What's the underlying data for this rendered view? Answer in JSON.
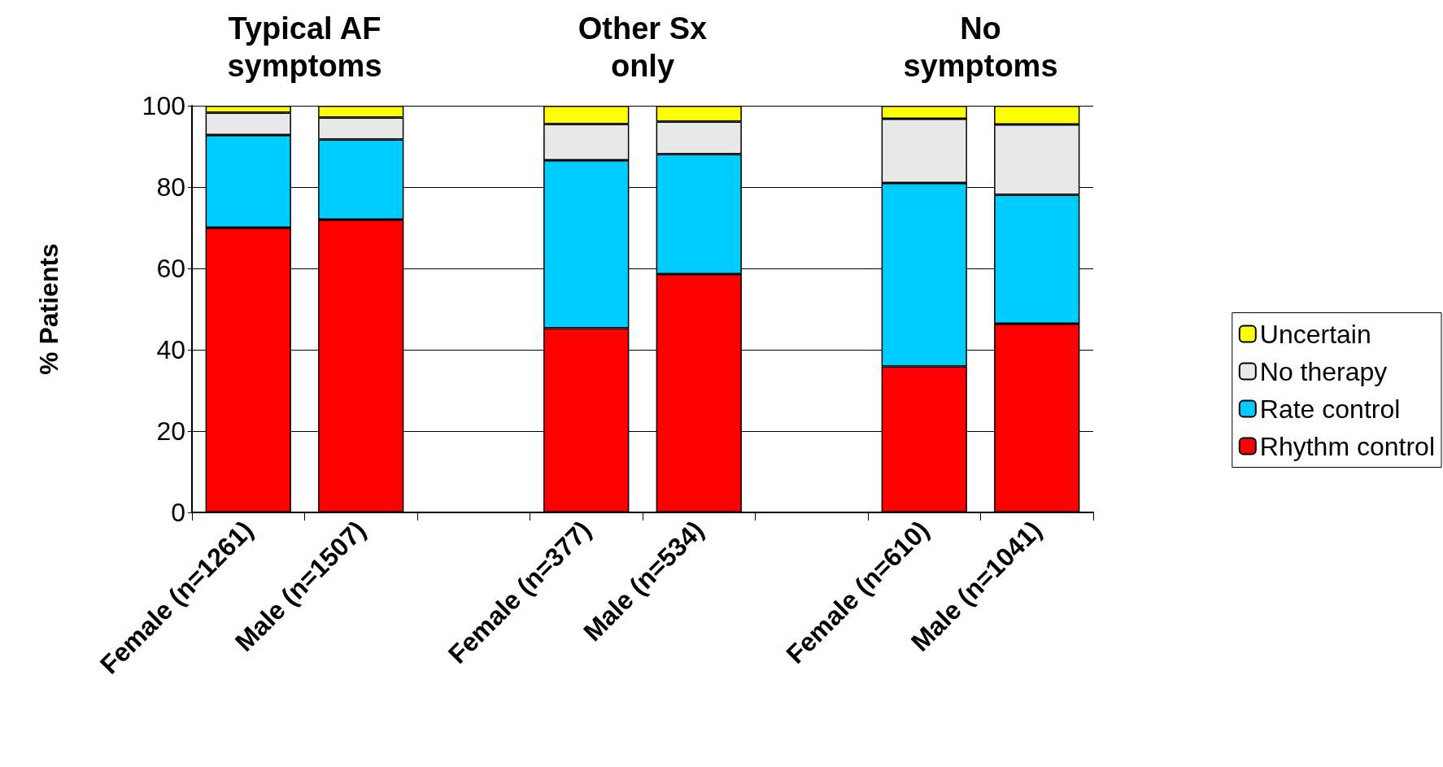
{
  "chart_data": {
    "type": "bar",
    "stacked": true,
    "ylabel": "% Patients",
    "annotations": [
      "Typical AF\nsymptoms",
      "Other Sx\nonly",
      "No\nsymptoms"
    ],
    "categories": [
      "Female (n=1261)",
      "Male (n=1507)",
      null,
      "Female (n=377)",
      "Male (n=534)",
      null,
      "Female (n=610)",
      "Male (n=1041)"
    ],
    "series": [
      {
        "name": "Rhythm control",
        "color": "#ff0000",
        "values": [
          70,
          72,
          null,
          45.3,
          58.6,
          null,
          35.9,
          46.4
        ]
      },
      {
        "name": "Rate control",
        "color": "#00ccff",
        "values": [
          22.8,
          19.7,
          null,
          41.3,
          29.5,
          null,
          45.1,
          31.7
        ]
      },
      {
        "name": "No therapy",
        "color": "#e8e8e8",
        "values": [
          5.5,
          5.4,
          null,
          8.9,
          8,
          null,
          15.8,
          17.3
        ]
      },
      {
        "name": "Uncertain",
        "color": "#ffff00",
        "values": [
          1.7,
          2.9,
          null,
          4.5,
          3.9,
          null,
          3.2,
          4.6
        ]
      }
    ],
    "ylim": [
      0,
      100
    ],
    "yticks": [
      0,
      20,
      40,
      60,
      80,
      100
    ],
    "grid": "y",
    "legend": "right"
  }
}
